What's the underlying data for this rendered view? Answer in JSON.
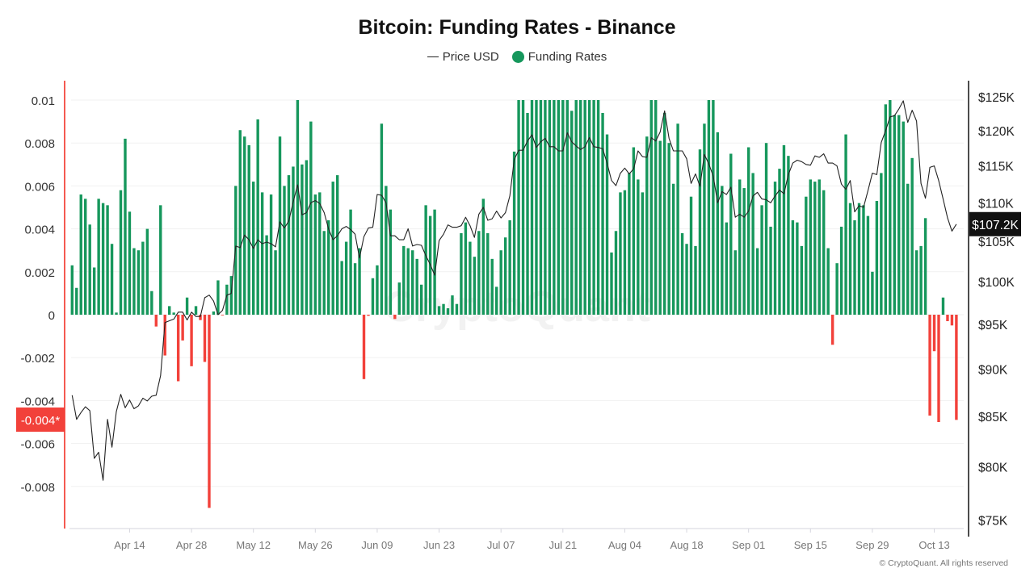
{
  "chart_data": {
    "type": "bar+line",
    "title": "Bitcoin: Funding Rates - Binance",
    "legend": {
      "placement": "top-center",
      "entries": [
        "Price USD",
        "Funding Rates"
      ]
    },
    "x_first": "Apr 01",
    "x_last": "Oct 18",
    "x_interval": "1 day",
    "x_ticks": [
      "Apr 14",
      "Apr 28",
      "May 12",
      "May 26",
      "Jun 09",
      "Jun 23",
      "Jul 07",
      "Jul 21",
      "Aug 04",
      "Aug 18",
      "Sep 01",
      "Sep 15",
      "Sep 29",
      "Oct 13"
    ],
    "left_axis": {
      "ticks": [
        "0.01",
        "0.008",
        "0.006",
        "0.004",
        "0.002",
        "0",
        "-0.002",
        "-0.004",
        "-0.006",
        "-0.008"
      ],
      "ylim": [
        -0.01,
        0.01
      ],
      "scale": "linear",
      "marker_label": "-0.004*"
    },
    "right_axis": {
      "ticks": [
        "$125K",
        "$120K",
        "$115K",
        "$110K",
        "$105K",
        "$100K",
        "$95K",
        "$90K",
        "$85K",
        "$80K",
        "$75K"
      ],
      "tick_values": [
        125,
        120,
        115,
        110,
        105,
        100,
        95,
        90,
        85,
        80,
        75
      ],
      "ylim_k": [
        75,
        125
      ],
      "scale": "log",
      "marker_label": "$107.2K"
    },
    "grid": true,
    "series": [
      {
        "name": "Funding Rates",
        "type": "bar",
        "color_positive": "#16975c",
        "color_negative": "#f2413a",
        "values": [
          0.0023,
          0.00125,
          0.0056,
          0.0054,
          0.0042,
          0.0022,
          0.0054,
          0.0052,
          0.0051,
          0.0033,
          0.0001,
          0.0058,
          0.0082,
          0.0048,
          0.0031,
          0.003,
          0.0034,
          0.004,
          0.0011,
          -0.00055,
          0.0051,
          -0.0019,
          0.0004,
          0.0001,
          -0.0031,
          -0.0012,
          0.0008,
          -0.0024,
          0.0004,
          -0.00025,
          -0.0022,
          -0.009,
          0.00015,
          0.0016,
          -3e-05,
          0.0014,
          0.0018,
          0.006,
          0.0086,
          0.0083,
          0.0079,
          0.0062,
          0.0091,
          0.0057,
          0.0037,
          0.0056,
          0.003,
          0.0083,
          0.006,
          0.0065,
          0.0069,
          0.01,
          0.007,
          0.0072,
          0.009,
          0.0056,
          0.0057,
          0.0039,
          0.0044,
          0.0062,
          0.0065,
          0.0025,
          0.0034,
          0.0049,
          0.0024,
          0.0031,
          -0.003,
          -5e-05,
          0.0017,
          0.0023,
          0.0089,
          0.006,
          0.0049,
          -0.0002,
          0.0015,
          0.0032,
          0.0031,
          0.003,
          0.0026,
          0.0014,
          0.0051,
          0.0046,
          0.0049,
          0.0004,
          0.0005,
          0.0003,
          0.0009,
          0.0005,
          0.0038,
          0.0043,
          0.0034,
          0.0027,
          0.0039,
          0.0054,
          0.0038,
          0.0026,
          0.0013,
          0.003,
          0.0036,
          0.0044,
          0.0076,
          0.01,
          0.01,
          0.0094,
          0.01,
          0.01,
          0.01,
          0.01,
          0.01,
          0.01,
          0.01,
          0.01,
          0.01,
          0.0095,
          0.01,
          0.01,
          0.01,
          0.01,
          0.01,
          0.01,
          0.0094,
          0.0084,
          0.0029,
          0.0039,
          0.0057,
          0.0058,
          0.0066,
          0.0078,
          0.0063,
          0.0057,
          0.0083,
          0.01,
          0.01,
          0.0081,
          0.0094,
          0.008,
          0.0061,
          0.0089,
          0.0038,
          0.0033,
          0.0055,
          0.0032,
          0.0077,
          0.0089,
          0.01,
          0.01,
          0.0085,
          0.006,
          0.0043,
          0.0075,
          0.003,
          0.0063,
          0.0059,
          0.0078,
          0.0066,
          0.0031,
          0.0051,
          0.008,
          0.0041,
          0.0062,
          0.0068,
          0.0079,
          0.0074,
          0.0044,
          0.0043,
          0.0032,
          0.0055,
          0.0063,
          0.0062,
          0.0063,
          0.0058,
          0.0031,
          -0.0014,
          0.0024,
          0.0041,
          0.0084,
          0.0052,
          0.0044,
          0.0052,
          0.0051,
          0.0046,
          0.002,
          0.0053,
          0.0066,
          0.0098,
          0.01,
          0.0093,
          0.0093,
          0.009,
          0.0061,
          0.0073,
          0.003,
          0.0032,
          0.0045,
          -0.0047,
          -0.0017,
          -0.005,
          0.0008,
          -0.0003,
          -0.0005,
          -0.0049
        ]
      },
      {
        "name": "Price USD",
        "type": "line",
        "axis": "right",
        "unit": "K USD",
        "color": "#222222",
        "values": [
          87.2,
          84.7,
          85.4,
          86.0,
          85.6,
          80.8,
          81.4,
          78.7,
          84.7,
          81.9,
          85.5,
          87.3,
          85.9,
          86.7,
          85.8,
          86.1,
          86.9,
          86.6,
          87.1,
          87.2,
          89.3,
          95.2,
          95.4,
          95.6,
          96.4,
          96.4,
          95.5,
          96.4,
          95.9,
          95.9,
          98.1,
          98.4,
          97.7,
          96.1,
          96.6,
          98.4,
          98.6,
          104.4,
          104.2,
          105.8,
          105.2,
          104.1,
          105.2,
          104.7,
          104.9,
          104.7,
          104.3,
          107.5,
          106.7,
          107.6,
          110.1,
          112.4,
          108.4,
          108.7,
          110.0,
          110.3,
          109.9,
          108.7,
          106.6,
          105.2,
          105.7,
          106.6,
          106.9,
          106.5,
          105.9,
          102.9,
          105.6,
          106.7,
          106.8,
          111.1,
          111.0,
          110.0,
          105.7,
          105.7,
          105.2,
          105.2,
          106.6,
          104.4,
          104.6,
          104.5,
          103.2,
          102.1,
          100.8,
          105.1,
          105.9,
          107.1,
          106.8,
          106.8,
          107.0,
          108.1,
          107.0,
          105.5,
          108.5,
          109.4,
          107.7,
          107.9,
          108.9,
          108.0,
          108.7,
          110.9,
          115.9,
          117.2,
          117.2,
          118.5,
          119.4,
          117.6,
          118.4,
          118.9,
          117.7,
          117.7,
          117.1,
          117.1,
          119.7,
          118.4,
          117.8,
          117.3,
          117.7,
          119.0,
          117.7,
          117.6,
          117.4,
          115.4,
          113.0,
          112.3,
          114.0,
          114.7,
          113.9,
          114.6,
          117.1,
          116.3,
          116.2,
          119.0,
          118.5,
          119.8,
          122.9,
          118.9,
          117.1,
          117.1,
          117.1,
          116.0,
          112.6,
          113.9,
          112.2,
          116.6,
          115.3,
          113.6,
          110.0,
          111.5,
          111.1,
          112.1,
          108.1,
          108.5,
          108.1,
          108.9,
          110.9,
          111.4,
          110.5,
          110.4,
          110.0,
          110.9,
          111.7,
          111.2,
          113.8,
          115.4,
          115.8,
          115.6,
          115.2,
          115.1,
          116.4,
          116.2,
          116.7,
          115.4,
          115.4,
          115.0,
          112.5,
          111.8,
          113.0,
          108.8,
          109.6,
          109.4,
          111.6,
          114.0,
          113.8,
          118.3,
          120.0,
          122.0,
          122.2,
          123.2,
          124.4,
          121.2,
          123.0,
          121.4,
          112.6,
          110.6,
          114.8,
          115.0,
          113.0,
          110.5,
          108.0,
          106.3,
          107.2
        ]
      }
    ]
  },
  "watermark": "CryptoQuant",
  "copyright": "© CryptoQuant. All rights reserved"
}
